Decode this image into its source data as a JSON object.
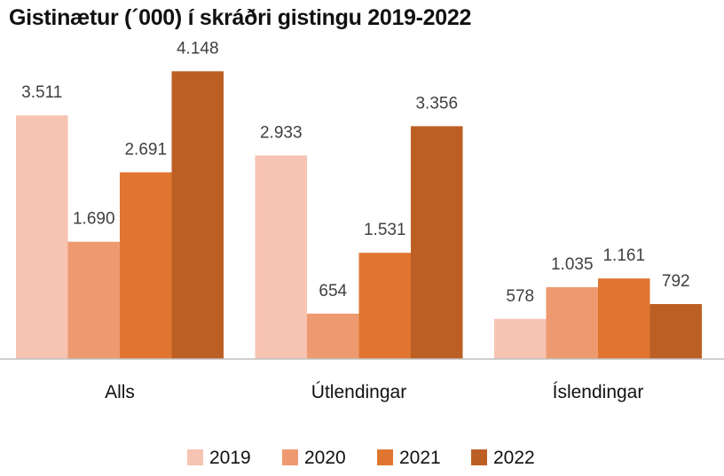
{
  "chart_data": {
    "type": "bar",
    "title": "Gistinætur (´000) í skráðri gistingu 2019-2022",
    "categories": [
      "Alls",
      "Útlendingar",
      "Íslendingar"
    ],
    "series": [
      {
        "name": "2019",
        "values": [
          3511,
          2933,
          578
        ],
        "labels": [
          "3.511",
          "2.933",
          "578"
        ],
        "color": "#f7c3b2"
      },
      {
        "name": "2020",
        "values": [
          1690,
          654,
          1035
        ],
        "labels": [
          "1.690",
          "654",
          "1.035"
        ],
        "color": "#ee9a70"
      },
      {
        "name": "2021",
        "values": [
          2691,
          1531,
          1161
        ],
        "labels": [
          "2.691",
          "1.531",
          "1.161"
        ],
        "color": "#e07530"
      },
      {
        "name": "2022",
        "values": [
          4148,
          3356,
          792
        ],
        "labels": [
          "4.148",
          "3.356",
          "792"
        ],
        "color": "#bc5f25"
      }
    ],
    "ylim": [
      0,
      4600
    ],
    "legend": "bottom",
    "grid": false
  }
}
